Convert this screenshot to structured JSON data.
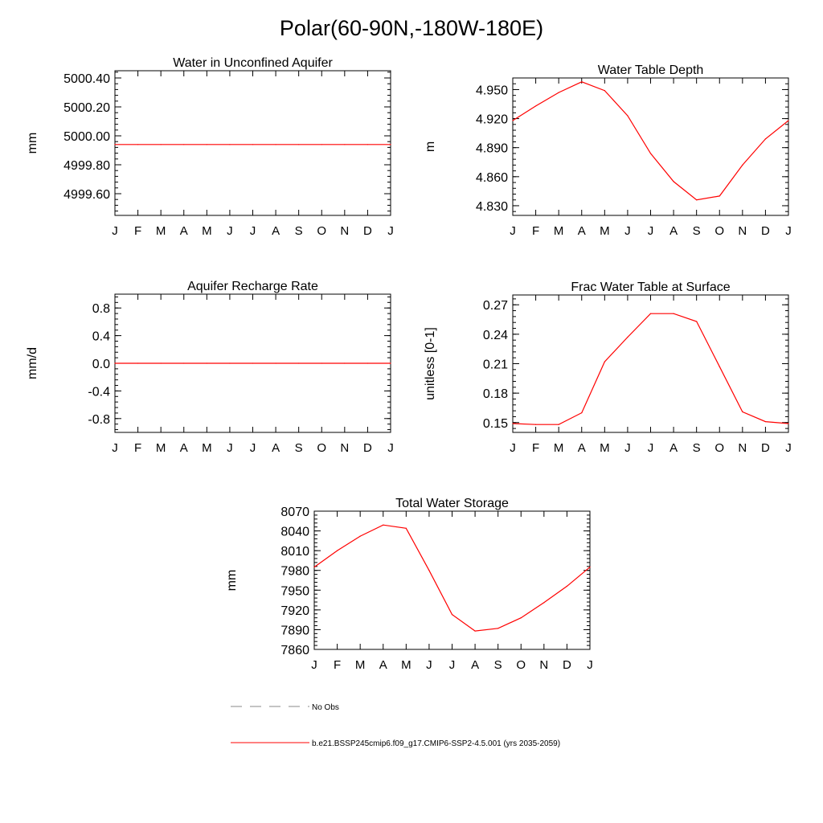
{
  "title": "Polar(60-90N,-180W-180E)",
  "months": [
    "J",
    "F",
    "M",
    "A",
    "M",
    "J",
    "J",
    "A",
    "S",
    "O",
    "N",
    "D",
    "J"
  ],
  "series_color": "#ff0000",
  "chart_data": [
    {
      "type": "line",
      "title": "Water in Unconfined Aquifer",
      "ylabel": "mm",
      "yticks": [
        "4999.60",
        "4999.80",
        "5000.00",
        "5000.20",
        "5000.40"
      ],
      "ytick_values": [
        4999.6,
        4999.8,
        5000.0,
        5000.2,
        5000.4
      ],
      "ylim": [
        4999.45,
        5000.45
      ],
      "values": [
        4999.94,
        4999.94,
        4999.94,
        4999.94,
        4999.94,
        4999.94,
        4999.94,
        4999.94,
        4999.94,
        4999.94,
        4999.94,
        4999.94,
        4999.94
      ]
    },
    {
      "type": "line",
      "title": "Water Table Depth",
      "ylabel": "m",
      "yticks": [
        "4.830",
        "4.860",
        "4.890",
        "4.920",
        "4.950"
      ],
      "ytick_values": [
        4.83,
        4.86,
        4.89,
        4.92,
        4.95
      ],
      "ylim": [
        4.82,
        4.962
      ],
      "values": [
        4.918,
        4.933,
        4.947,
        4.958,
        4.949,
        4.923,
        4.884,
        4.855,
        4.836,
        4.84,
        4.872,
        4.899,
        4.918
      ]
    },
    {
      "type": "line",
      "title": "Aquifer Recharge Rate",
      "ylabel": "mm/d",
      "yticks": [
        "-0.8",
        "-0.4",
        "0.0",
        "0.4",
        "0.8"
      ],
      "ytick_values": [
        -0.8,
        -0.4,
        0.0,
        0.4,
        0.8
      ],
      "ylim": [
        -1.0,
        1.0
      ],
      "values": [
        0,
        0,
        0,
        0,
        0,
        0,
        0,
        0,
        0,
        0,
        0,
        0,
        0
      ]
    },
    {
      "type": "line",
      "title": "Frac Water Table at Surface",
      "ylabel": "unitless [0-1]",
      "yticks": [
        "0.15",
        "0.18",
        "0.21",
        "0.24",
        "0.27"
      ],
      "ytick_values": [
        0.15,
        0.18,
        0.21,
        0.24,
        0.27
      ],
      "ylim": [
        0.14,
        0.28
      ],
      "values": [
        0.149,
        0.148,
        0.148,
        0.16,
        0.212,
        0.237,
        0.261,
        0.261,
        0.253,
        0.207,
        0.161,
        0.151,
        0.149
      ]
    },
    {
      "type": "line",
      "title": "Total Water Storage",
      "ylabel": "mm",
      "yticks": [
        "7860",
        "7890",
        "7920",
        "7950",
        "7980",
        "8010",
        "8040",
        "8070"
      ],
      "ytick_values": [
        7860,
        7890,
        7920,
        7950,
        7980,
        8010,
        8040,
        8070
      ],
      "ylim": [
        7860,
        8070
      ],
      "values": [
        7985,
        8010,
        8032,
        8049,
        8044,
        7980,
        7913,
        7888,
        7892,
        7908,
        7931,
        7956,
        7985
      ]
    }
  ],
  "legend": [
    {
      "label": "No Obs",
      "color": "#888888",
      "style": "dashed"
    },
    {
      "label": "b.e21.BSSP245cmip6.f09_g17.CMIP6-SSP2-4.5.001 (yrs 2035-2059)",
      "color": "#ff0000",
      "style": "solid"
    }
  ]
}
